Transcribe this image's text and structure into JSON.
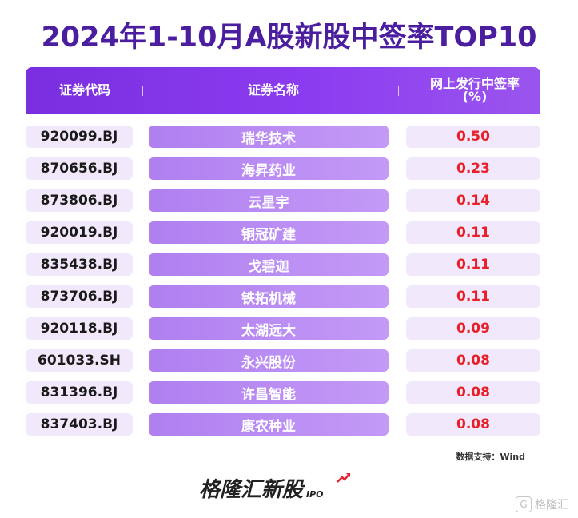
{
  "title": "2024年1-10月A股新股中签率TOP10",
  "chart_data": {
    "type": "table",
    "title": "2024年1-10月A股新股中签率TOP10",
    "columns": [
      "证券代码",
      "证券名称",
      "网上发行中签率(%)"
    ],
    "rows": [
      {
        "code": "920099.BJ",
        "name": "瑞华技术",
        "rate": "0.50"
      },
      {
        "code": "870656.BJ",
        "name": "海昇药业",
        "rate": "0.23"
      },
      {
        "code": "873806.BJ",
        "name": "云星宇",
        "rate": "0.14"
      },
      {
        "code": "920019.BJ",
        "name": "铜冠矿建",
        "rate": "0.11"
      },
      {
        "code": "835438.BJ",
        "name": "戈碧迦",
        "rate": "0.11"
      },
      {
        "code": "873706.BJ",
        "name": "铁拓机械",
        "rate": "0.11"
      },
      {
        "code": "920118.BJ",
        "name": "太湖远大",
        "rate": "0.09"
      },
      {
        "code": "601033.SH",
        "name": "永兴股份",
        "rate": "0.08"
      },
      {
        "code": "831396.BJ",
        "name": "许昌智能",
        "rate": "0.08"
      },
      {
        "code": "837403.BJ",
        "name": "康农种业",
        "rate": "0.08"
      }
    ]
  },
  "header": {
    "col1": "证券代码",
    "col2": "证券名称",
    "col3_line1": "网上发行中签率",
    "col3_line2": "(%)"
  },
  "source": "数据支持：Wind",
  "brand": {
    "name": "格隆汇新股",
    "tag": "IPO"
  },
  "watermark": "格隆汇",
  "colors": {
    "title": "#4a1e9e",
    "header": "#8c3cf0",
    "name_cell": "#b07ff0",
    "value_text": "#e8202a",
    "cell_bg": "#f1e9fb"
  }
}
